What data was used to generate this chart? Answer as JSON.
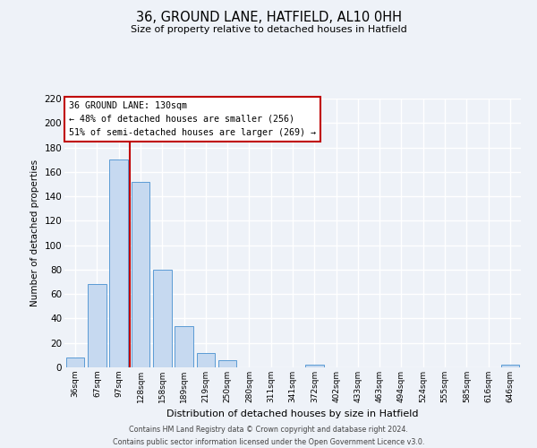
{
  "title": "36, GROUND LANE, HATFIELD, AL10 0HH",
  "subtitle": "Size of property relative to detached houses in Hatfield",
  "xlabel": "Distribution of detached houses by size in Hatfield",
  "ylabel": "Number of detached properties",
  "bar_labels": [
    "36sqm",
    "67sqm",
    "97sqm",
    "128sqm",
    "158sqm",
    "189sqm",
    "219sqm",
    "250sqm",
    "280sqm",
    "311sqm",
    "341sqm",
    "372sqm",
    "402sqm",
    "433sqm",
    "463sqm",
    "494sqm",
    "524sqm",
    "555sqm",
    "585sqm",
    "616sqm",
    "646sqm"
  ],
  "bar_values": [
    8,
    68,
    170,
    152,
    80,
    34,
    12,
    6,
    0,
    0,
    0,
    2,
    0,
    0,
    0,
    0,
    0,
    0,
    0,
    0,
    2
  ],
  "bar_color": "#c6d9f0",
  "bar_edge_color": "#5b9bd5",
  "vline_color": "#c00000",
  "vline_bar_index": 3,
  "annotation_title": "36 GROUND LANE: 130sqm",
  "annotation_line1": "← 48% of detached houses are smaller (256)",
  "annotation_line2": "51% of semi-detached houses are larger (269) →",
  "annotation_box_color": "#ffffff",
  "annotation_box_edge": "#c00000",
  "ylim": [
    0,
    220
  ],
  "yticks": [
    0,
    20,
    40,
    60,
    80,
    100,
    120,
    140,
    160,
    180,
    200,
    220
  ],
  "footer_line1": "Contains HM Land Registry data © Crown copyright and database right 2024.",
  "footer_line2": "Contains public sector information licensed under the Open Government Licence v3.0.",
  "bg_color": "#eef2f8"
}
